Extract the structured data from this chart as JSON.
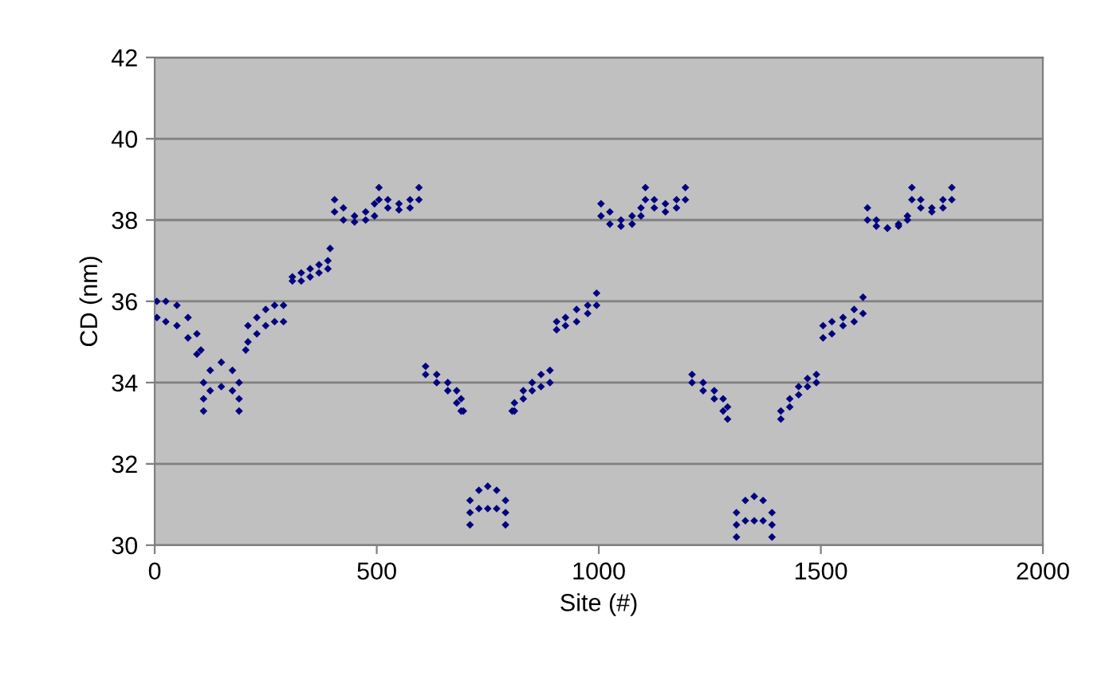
{
  "chart_data": {
    "type": "scatter",
    "xlabel": "Site (#)",
    "ylabel": "CD (nm)",
    "xlim": [
      0,
      2000
    ],
    "xticks": [
      0,
      500,
      1000,
      1500,
      2000
    ],
    "ylim": [
      30,
      42
    ],
    "yticks": [
      30,
      32,
      34,
      36,
      38,
      40,
      42
    ],
    "grid": "y",
    "marker": "diamond",
    "series": [
      {
        "color": "#000080",
        "x": [
          5,
          5,
          25,
          25,
          50,
          50,
          75,
          75,
          95,
          95,
          104,
          110,
          110,
          110,
          125,
          125,
          150,
          150,
          175,
          175,
          190,
          190,
          190,
          205,
          210,
          210,
          230,
          230,
          250,
          250,
          270,
          270,
          290,
          290,
          310,
          310,
          330,
          330,
          350,
          350,
          370,
          370,
          390,
          390,
          395,
          405,
          405,
          425,
          425,
          450,
          450,
          475,
          475,
          495,
          495,
          505,
          505,
          525,
          525,
          550,
          550,
          575,
          575,
          595,
          595,
          610,
          610,
          635,
          635,
          660,
          660,
          680,
          680,
          690,
          690,
          695,
          710,
          710,
          710,
          730,
          730,
          750,
          750,
          770,
          770,
          790,
          790,
          790,
          805,
          810,
          810,
          830,
          830,
          850,
          850,
          870,
          870,
          890,
          890,
          905,
          905,
          925,
          925,
          950,
          950,
          975,
          975,
          995,
          995,
          1005,
          1005,
          1025,
          1025,
          1050,
          1050,
          1075,
          1075,
          1095,
          1095,
          1105,
          1105,
          1125,
          1125,
          1150,
          1150,
          1175,
          1175,
          1195,
          1195,
          1210,
          1210,
          1235,
          1235,
          1260,
          1260,
          1280,
          1280,
          1290,
          1290,
          1310,
          1310,
          1310,
          1330,
          1330,
          1350,
          1350,
          1370,
          1370,
          1390,
          1390,
          1390,
          1410,
          1410,
          1430,
          1430,
          1450,
          1450,
          1470,
          1470,
          1490,
          1490,
          1505,
          1505,
          1525,
          1525,
          1550,
          1550,
          1575,
          1575,
          1595,
          1595,
          1605,
          1605,
          1625,
          1625,
          1650,
          1650,
          1675,
          1675,
          1695,
          1695,
          1705,
          1705,
          1725,
          1725,
          1750,
          1750,
          1775,
          1775,
          1795,
          1795
        ],
        "values": [
          36.0,
          35.6,
          36.0,
          35.5,
          35.9,
          35.4,
          35.6,
          35.1,
          35.2,
          34.7,
          34.8,
          34.0,
          33.6,
          33.3,
          34.3,
          33.8,
          34.5,
          33.9,
          34.3,
          33.8,
          34.0,
          33.6,
          33.3,
          34.8,
          35.4,
          35.0,
          35.6,
          35.2,
          35.8,
          35.4,
          35.9,
          35.5,
          35.9,
          35.5,
          36.6,
          36.5,
          36.7,
          36.5,
          36.8,
          36.6,
          36.9,
          36.7,
          37.0,
          36.8,
          37.3,
          38.5,
          38.2,
          38.3,
          38.0,
          38.1,
          37.95,
          38.2,
          38.0,
          38.4,
          38.1,
          38.8,
          38.5,
          38.5,
          38.3,
          38.4,
          38.25,
          38.5,
          38.3,
          38.8,
          38.5,
          34.4,
          34.2,
          34.2,
          34.0,
          34.0,
          33.8,
          33.8,
          33.5,
          33.6,
          33.3,
          33.3,
          31.1,
          30.8,
          30.5,
          31.35,
          30.9,
          31.45,
          30.9,
          31.35,
          30.9,
          31.1,
          30.8,
          30.5,
          33.3,
          33.5,
          33.3,
          33.8,
          33.6,
          34.0,
          33.8,
          34.2,
          33.9,
          34.3,
          34.0,
          35.5,
          35.3,
          35.6,
          35.4,
          35.8,
          35.5,
          35.9,
          35.7,
          36.2,
          35.9,
          38.4,
          38.1,
          38.2,
          37.9,
          38.0,
          37.85,
          38.1,
          37.9,
          38.3,
          38.1,
          38.8,
          38.5,
          38.5,
          38.3,
          38.4,
          38.2,
          38.5,
          38.3,
          38.8,
          38.5,
          34.2,
          34.0,
          34.0,
          33.8,
          33.8,
          33.6,
          33.6,
          33.3,
          33.4,
          33.1,
          30.8,
          30.5,
          30.2,
          31.1,
          30.6,
          31.2,
          30.6,
          31.1,
          30.6,
          30.8,
          30.5,
          30.2,
          33.3,
          33.1,
          33.6,
          33.4,
          33.9,
          33.7,
          34.1,
          33.9,
          34.2,
          34.0,
          35.4,
          35.1,
          35.5,
          35.2,
          35.6,
          35.4,
          35.8,
          35.5,
          36.1,
          35.7,
          38.3,
          38.0,
          38.0,
          37.85,
          37.8,
          37.8,
          37.9,
          37.85,
          38.1,
          38.0,
          38.8,
          38.5,
          38.5,
          38.3,
          38.3,
          38.2,
          38.5,
          38.3,
          38.8,
          38.5
        ]
      }
    ]
  }
}
